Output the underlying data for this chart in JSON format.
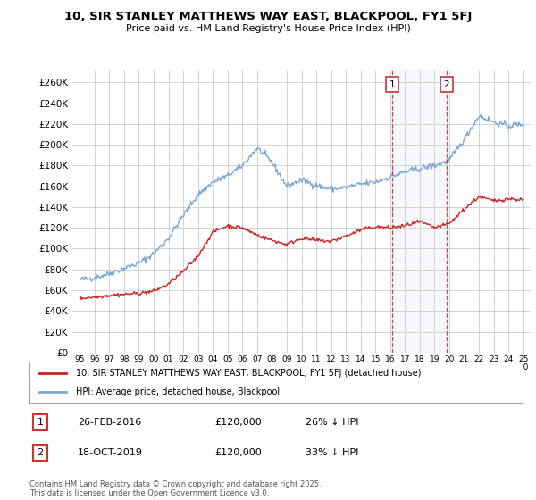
{
  "title": "10, SIR STANLEY MATTHEWS WAY EAST, BLACKPOOL, FY1 5FJ",
  "subtitle": "Price paid vs. HM Land Registry's House Price Index (HPI)",
  "ylabel_ticks": [
    "£0",
    "£20K",
    "£40K",
    "£60K",
    "£80K",
    "£100K",
    "£120K",
    "£140K",
    "£160K",
    "£180K",
    "£200K",
    "£220K",
    "£240K",
    "£260K"
  ],
  "ytick_values": [
    0,
    20000,
    40000,
    60000,
    80000,
    100000,
    120000,
    140000,
    160000,
    180000,
    200000,
    220000,
    240000,
    260000
  ],
  "ylim": [
    0,
    272000
  ],
  "xlim_start": 1994.5,
  "xlim_end": 2025.5,
  "x_ticks": [
    1995,
    1996,
    1997,
    1998,
    1999,
    2000,
    2001,
    2002,
    2003,
    2004,
    2005,
    2006,
    2007,
    2008,
    2009,
    2010,
    2011,
    2012,
    2013,
    2014,
    2015,
    2016,
    2017,
    2018,
    2019,
    2020,
    2021,
    2022,
    2023,
    2024,
    2025
  ],
  "hpi_color": "#7aa8d2",
  "price_color": "#cc2222",
  "annotation_color": "#cc3333",
  "grid_color": "#cccccc",
  "bg_color": "#ffffff",
  "legend_label_price": "10, SIR STANLEY MATTHEWS WAY EAST, BLACKPOOL, FY1 5FJ (detached house)",
  "legend_label_hpi": "HPI: Average price, detached house, Blackpool",
  "transaction1_label": "1",
  "transaction1_date": "26-FEB-2016",
  "transaction1_price": "£120,000",
  "transaction1_hpi": "26% ↓ HPI",
  "transaction2_label": "2",
  "transaction2_date": "18-OCT-2019",
  "transaction2_price": "£120,000",
  "transaction2_hpi": "33% ↓ HPI",
  "footnote": "Contains HM Land Registry data © Crown copyright and database right 2025.\nThis data is licensed under the Open Government Licence v3.0.",
  "transaction1_x": 2016.15,
  "transaction2_x": 2019.8
}
